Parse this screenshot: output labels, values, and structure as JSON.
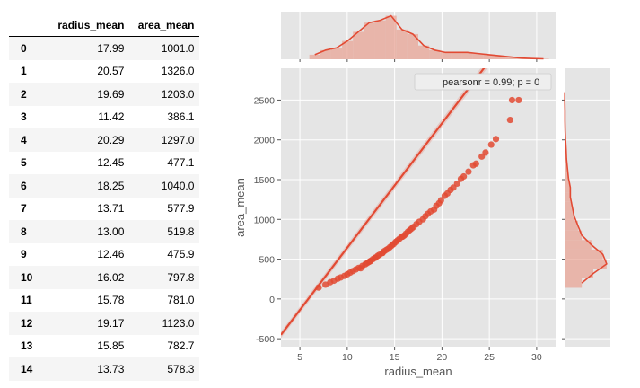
{
  "table": {
    "columns": [
      "",
      "radius_mean",
      "area_mean"
    ],
    "rows": [
      {
        "index": "0",
        "radius_mean": "17.99",
        "area_mean": "1001.0"
      },
      {
        "index": "1",
        "radius_mean": "20.57",
        "area_mean": "1326.0"
      },
      {
        "index": "2",
        "radius_mean": "19.69",
        "area_mean": "1203.0"
      },
      {
        "index": "3",
        "radius_mean": "11.42",
        "area_mean": "386.1"
      },
      {
        "index": "4",
        "radius_mean": "20.29",
        "area_mean": "1297.0"
      },
      {
        "index": "5",
        "radius_mean": "12.45",
        "area_mean": "477.1"
      },
      {
        "index": "6",
        "radius_mean": "18.25",
        "area_mean": "1040.0"
      },
      {
        "index": "7",
        "radius_mean": "13.71",
        "area_mean": "577.9"
      },
      {
        "index": "8",
        "radius_mean": "13.00",
        "area_mean": "519.8"
      },
      {
        "index": "9",
        "radius_mean": "12.46",
        "area_mean": "475.9"
      },
      {
        "index": "10",
        "radius_mean": "16.02",
        "area_mean": "797.8"
      },
      {
        "index": "11",
        "radius_mean": "15.78",
        "area_mean": "781.0"
      },
      {
        "index": "12",
        "radius_mean": "19.17",
        "area_mean": "1123.0"
      },
      {
        "index": "13",
        "radius_mean": "15.85",
        "area_mean": "782.7"
      },
      {
        "index": "14",
        "radius_mean": "13.73",
        "area_mean": "578.3"
      }
    ]
  },
  "chart_data": {
    "type": "scatter",
    "xlabel": "radius_mean",
    "ylabel": "area_mean",
    "xlim": [
      3,
      32
    ],
    "ylim": [
      -600,
      2900
    ],
    "xticks": [
      "5",
      "10",
      "15",
      "20",
      "25",
      "30"
    ],
    "yticks": [
      "-500",
      "0",
      "500",
      "1000",
      "1500",
      "2000",
      "2500"
    ],
    "xtick_values": [
      5,
      10,
      15,
      20,
      25,
      30
    ],
    "ytick_values": [
      -500,
      0,
      500,
      1000,
      1500,
      2000,
      2500
    ],
    "annotation": "pearsonr = 0.99; p = 0",
    "grid": true,
    "regression": {
      "slope": 156.4,
      "intercept": -920
    },
    "points": [
      [
        6.98,
        143
      ],
      [
        7.7,
        180
      ],
      [
        8.2,
        210
      ],
      [
        8.6,
        230
      ],
      [
        9.0,
        255
      ],
      [
        9.3,
        270
      ],
      [
        9.7,
        290
      ],
      [
        10.0,
        310
      ],
      [
        10.3,
        330
      ],
      [
        10.6,
        350
      ],
      [
        10.9,
        370
      ],
      [
        11.2,
        390
      ],
      [
        11.42,
        386
      ],
      [
        11.6,
        415
      ],
      [
        11.9,
        435
      ],
      [
        12.1,
        450
      ],
      [
        12.3,
        465
      ],
      [
        12.45,
        477
      ],
      [
        12.46,
        476
      ],
      [
        12.7,
        500
      ],
      [
        12.9,
        515
      ],
      [
        13.0,
        520
      ],
      [
        13.2,
        540
      ],
      [
        13.4,
        555
      ],
      [
        13.71,
        578
      ],
      [
        13.73,
        578
      ],
      [
        13.9,
        600
      ],
      [
        14.1,
        615
      ],
      [
        14.3,
        630
      ],
      [
        14.5,
        650
      ],
      [
        14.7,
        670
      ],
      [
        14.9,
        690
      ],
      [
        15.1,
        715
      ],
      [
        15.3,
        735
      ],
      [
        15.5,
        755
      ],
      [
        15.78,
        781
      ],
      [
        15.85,
        783
      ],
      [
        16.02,
        798
      ],
      [
        16.2,
        820
      ],
      [
        16.4,
        845
      ],
      [
        16.6,
        865
      ],
      [
        16.8,
        885
      ],
      [
        17.0,
        905
      ],
      [
        17.3,
        940
      ],
      [
        17.6,
        970
      ],
      [
        17.99,
        1001
      ],
      [
        18.25,
        1040
      ],
      [
        18.5,
        1070
      ],
      [
        18.8,
        1100
      ],
      [
        19.17,
        1123
      ],
      [
        19.4,
        1170
      ],
      [
        19.69,
        1203
      ],
      [
        19.9,
        1240
      ],
      [
        20.29,
        1297
      ],
      [
        20.57,
        1326
      ],
      [
        20.9,
        1370
      ],
      [
        21.2,
        1400
      ],
      [
        21.6,
        1450
      ],
      [
        22.0,
        1510
      ],
      [
        22.3,
        1540
      ],
      [
        22.8,
        1600
      ],
      [
        23.3,
        1680
      ],
      [
        23.6,
        1700
      ],
      [
        24.2,
        1790
      ],
      [
        24.6,
        1840
      ],
      [
        25.2,
        1940
      ],
      [
        25.7,
        2010
      ],
      [
        27.2,
        2250
      ],
      [
        27.4,
        2500
      ],
      [
        28.1,
        2500
      ]
    ],
    "x_hist": {
      "edges_start": 6,
      "bin_width": 1.15,
      "density": [
        0.02,
        0.04,
        0.05,
        0.08,
        0.12,
        0.16,
        0.17,
        0.19,
        0.13,
        0.11,
        0.06,
        0.04,
        0.03,
        0.03,
        0.03,
        0.025,
        0.02,
        0.015,
        0.01,
        0.005,
        0.003,
        0.002
      ]
    },
    "y_hist": {
      "edges_start": 140,
      "bin_width": 120,
      "density": [
        0.0009,
        0.0015,
        0.0022,
        0.002,
        0.0014,
        0.0009,
        0.0007,
        0.0005,
        0.0004,
        0.0003,
        0.0003,
        0.0002,
        0.00015,
        0.0001,
        8e-05,
        5e-05,
        3e-05,
        2e-05,
        2e-05,
        1e-05,
        1e-05
      ]
    },
    "colors": {
      "points": "#e24a33",
      "panel": "#e5e5e5",
      "grid": "#ffffff",
      "hist": "#e8a496"
    }
  }
}
